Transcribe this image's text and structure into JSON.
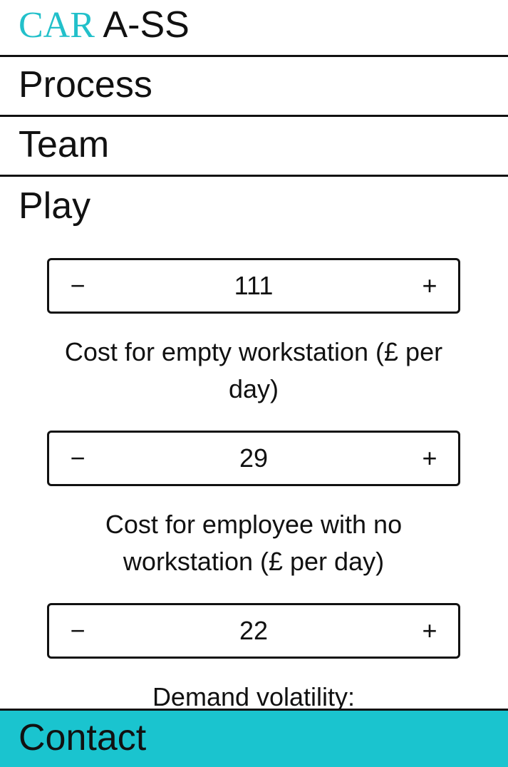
{
  "header": {
    "logo_accent": "CAR",
    "logo_rest": "A-SS",
    "accent_color": "#22c0ca"
  },
  "nav": {
    "items": [
      {
        "label": "Process"
      },
      {
        "label": "Team"
      }
    ],
    "active_section": "Play"
  },
  "play": {
    "steppers": [
      {
        "value": "111",
        "minus": "−",
        "plus": "+",
        "caption": "Cost for empty workstation (£ per day)"
      },
      {
        "value": "29",
        "minus": "−",
        "plus": "+",
        "caption": "Cost for employee with no workstation (£ per day)"
      },
      {
        "value": "22",
        "minus": "−",
        "plus": "+",
        "caption": "Demand volatility:"
      }
    ]
  },
  "footer": {
    "contact_label": "Contact",
    "bar_color": "#1ac4cf"
  }
}
